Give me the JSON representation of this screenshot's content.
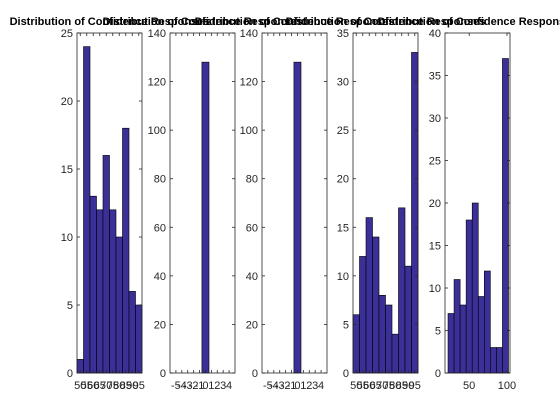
{
  "chart_data": [
    {
      "type": "histogram",
      "title": "Distribution of Confidence Responses",
      "color": "#3b3098",
      "bins": [
        47.5,
        52.5,
        57.5,
        62.5,
        67.5,
        72.5,
        77.5,
        82.5,
        87.5,
        92.5,
        97.5
      ],
      "values": [
        1,
        24,
        13,
        12,
        16,
        12,
        10,
        18,
        6,
        5
      ],
      "xlim": [
        47.5,
        97.5
      ],
      "xticks": [
        50,
        55,
        60,
        65,
        70,
        75,
        80,
        85,
        90,
        95
      ],
      "ylim": [
        0,
        25
      ],
      "yticks": [
        0,
        5,
        10,
        15,
        20,
        25
      ]
    },
    {
      "type": "histogram",
      "title": "Distribution of Confidence Responses",
      "color": "#3b3098",
      "bins": [
        -0.6,
        0.6
      ],
      "values": [
        128
      ],
      "xlim": [
        -6,
        5
      ],
      "xticks": [
        -5,
        -4,
        -3,
        -2,
        -1,
        0,
        1,
        2,
        3,
        4
      ],
      "ylim": [
        0,
        140
      ],
      "yticks": [
        0,
        20,
        40,
        60,
        80,
        100,
        120,
        140
      ]
    },
    {
      "type": "histogram",
      "title": "Distribution of Confidence Responses",
      "color": "#3b3098",
      "bins": [
        -0.6,
        0.6
      ],
      "values": [
        128
      ],
      "xlim": [
        -6,
        5
      ],
      "xticks": [
        -5,
        -4,
        -3,
        -2,
        -1,
        0,
        1,
        2,
        3,
        4
      ],
      "ylim": [
        0,
        140
      ],
      "yticks": [
        0,
        20,
        40,
        60,
        80,
        100,
        120,
        140
      ]
    },
    {
      "type": "histogram",
      "title": "Distribution of Confidence Responses",
      "color": "#3b3098",
      "bins": [
        47.5,
        52.5,
        57.5,
        62.5,
        67.5,
        72.5,
        77.5,
        82.5,
        87.5,
        92.5,
        97.5
      ],
      "values": [
        6,
        12,
        16,
        14,
        8,
        7,
        4,
        17,
        11,
        33
      ],
      "xlim": [
        47.5,
        97.5
      ],
      "xticks": [
        50,
        55,
        60,
        65,
        70,
        75,
        80,
        85,
        90,
        95
      ],
      "ylim": [
        0,
        35
      ],
      "yticks": [
        0,
        5,
        10,
        15,
        20,
        25,
        30,
        35
      ]
    },
    {
      "type": "histogram",
      "title": "Distribution of Confidence Responses",
      "color": "#3b3098",
      "bins": [
        22,
        30,
        38,
        46,
        54,
        62,
        70,
        78,
        86,
        94,
        102
      ],
      "values": [
        7,
        11,
        8,
        18,
        20,
        9,
        12,
        3,
        3,
        37
      ],
      "xlim": [
        18,
        104
      ],
      "xticks": [
        50,
        100
      ],
      "ylim": [
        0,
        40
      ],
      "yticks": [
        0,
        5,
        10,
        15,
        20,
        25,
        30,
        35,
        40
      ]
    }
  ]
}
